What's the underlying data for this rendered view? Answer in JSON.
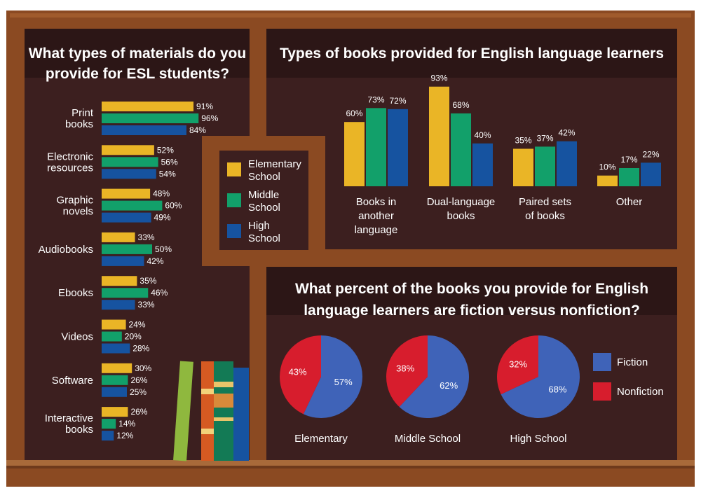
{
  "colors": {
    "elementary": "#eab526",
    "middle": "#12a06a",
    "high": "#1653a0",
    "fiction": "#3f63b8",
    "nonfiction": "#d71d2d",
    "frame": "#8b4a22",
    "panel": "#3c1f1f",
    "header": "#2c1616"
  },
  "legend": {
    "items": [
      {
        "lines": [
          "Elementary",
          "School"
        ],
        "color_key": "elementary"
      },
      {
        "lines": [
          "Middle",
          "School"
        ],
        "color_key": "middle"
      },
      {
        "lines": [
          "High",
          "School"
        ],
        "color_key": "high"
      }
    ]
  },
  "pie_legend": {
    "items": [
      {
        "label": "Fiction",
        "color_key": "fiction"
      },
      {
        "label": "Nonfiction",
        "color_key": "nonfiction"
      }
    ]
  },
  "chart_data": [
    {
      "type": "bar",
      "orientation": "horizontal",
      "title_lines": [
        "What types of materials do you",
        "provide for ESL students?"
      ],
      "categories": [
        [
          "Print",
          "books"
        ],
        [
          "Electronic",
          "resources"
        ],
        [
          "Graphic",
          "novels"
        ],
        [
          "Audiobooks"
        ],
        [
          "Ebooks"
        ],
        [
          "Videos"
        ],
        [
          "Software"
        ],
        [
          "Interactive",
          "books"
        ]
      ],
      "series": [
        {
          "name": "Elementary School",
          "color_key": "elementary",
          "values": [
            91,
            52,
            48,
            33,
            35,
            24,
            30,
            26
          ]
        },
        {
          "name": "Middle School",
          "color_key": "middle",
          "values": [
            96,
            56,
            60,
            50,
            46,
            20,
            26,
            14
          ]
        },
        {
          "name": "High School",
          "color_key": "high",
          "values": [
            84,
            54,
            49,
            42,
            33,
            28,
            25,
            12
          ]
        }
      ],
      "value_suffix": "%"
    },
    {
      "type": "bar",
      "orientation": "vertical",
      "title_lines": [
        "Types of books provided for English language learners"
      ],
      "categories": [
        [
          "Books in",
          "another",
          "language"
        ],
        [
          "Dual-language",
          "books"
        ],
        [
          "Paired sets",
          "of books"
        ],
        [
          "Other"
        ]
      ],
      "series": [
        {
          "name": "Elementary School",
          "color_key": "elementary",
          "values": [
            60,
            93,
            35,
            10
          ]
        },
        {
          "name": "Middle School",
          "color_key": "middle",
          "values": [
            73,
            68,
            37,
            17
          ]
        },
        {
          "name": "High School",
          "color_key": "high",
          "values": [
            72,
            40,
            42,
            22
          ]
        }
      ],
      "value_suffix": "%"
    },
    {
      "type": "pie",
      "title_lines": [
        "What percent of the books you provide for English",
        "language learners are fiction versus nonfiction?"
      ],
      "pies": [
        {
          "label": "Elementary",
          "fiction": 57,
          "nonfiction": 43
        },
        {
          "label": "Middle School",
          "fiction": 62,
          "nonfiction": 38
        },
        {
          "label": "High School",
          "fiction": 68,
          "nonfiction": 32
        }
      ],
      "value_suffix": "%"
    }
  ]
}
